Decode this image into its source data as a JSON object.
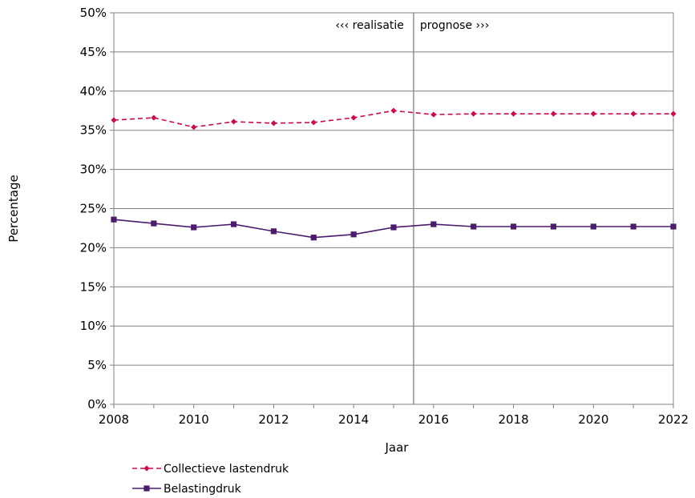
{
  "chart_data": {
    "type": "line",
    "title": "",
    "xlabel": "Jaar",
    "ylabel": "Percentage",
    "xlim": [
      2008,
      2022
    ],
    "ylim": [
      0,
      50
    ],
    "x_ticks": [
      "2008",
      "2010",
      "2012",
      "2014",
      "2016",
      "2018",
      "2020",
      "2022"
    ],
    "y_ticks": [
      "0%",
      "5%",
      "10%",
      "15%",
      "20%",
      "25%",
      "30%",
      "35%",
      "40%",
      "45%",
      "50%"
    ],
    "grid": true,
    "legend_position": "bottom-left",
    "x": [
      2008,
      2009,
      2010,
      2011,
      2012,
      2013,
      2014,
      2015,
      2016,
      2017,
      2018,
      2019,
      2020,
      2021,
      2022
    ],
    "series": [
      {
        "name": "Collectieve lastendruk",
        "color": "#cc0a4c",
        "line_style": "dashed",
        "marker": "diamond",
        "values": [
          36.3,
          36.6,
          35.4,
          36.1,
          35.9,
          36.0,
          36.6,
          37.5,
          37.0,
          37.1,
          37.1,
          37.1,
          37.1,
          37.1,
          37.1
        ]
      },
      {
        "name": "Belastingdruk",
        "color": "#4b1b6e",
        "line_style": "solid",
        "marker": "square",
        "values": [
          23.6,
          23.1,
          22.6,
          23.0,
          22.1,
          21.3,
          21.7,
          22.6,
          23.0,
          22.7,
          22.7,
          22.7,
          22.7,
          22.7,
          22.7
        ]
      }
    ],
    "annotations": {
      "divider_x": 2015.5,
      "realisatie_label": "‹‹‹ realisatie",
      "prognose_label": "prognose ›››"
    }
  }
}
